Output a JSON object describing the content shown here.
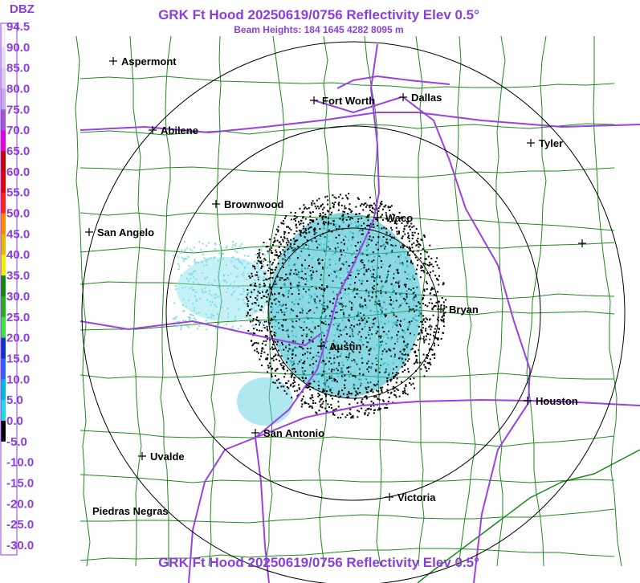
{
  "header": {
    "title": "GRK Ft Hood 20250619/0756 Reflectivity Elev 0.5°",
    "subtitle": "Beam Heights: 184 1645 4282 8095 m"
  },
  "legend": {
    "unit": "DBZ",
    "labels": [
      "94.5",
      "90.0",
      "85.0",
      "80.0",
      "75.0",
      "70.0",
      "65.0",
      "60.0",
      "55.0",
      "50.0",
      "45.0",
      "40.0",
      "35.0",
      "30.0",
      "25.0",
      "20.0",
      "15.0",
      "10.0",
      "5.0",
      "0.0",
      "-5.0",
      "-10.0",
      "-15.0",
      "-20.0",
      "-25.0",
      "-30.0"
    ]
  },
  "cities": [
    {
      "name": "Aspermont"
    },
    {
      "name": "Fort Worth"
    },
    {
      "name": "Dallas"
    },
    {
      "name": "Abilene"
    },
    {
      "name": "Tyler"
    },
    {
      "name": "Brownwood"
    },
    {
      "name": "Waco"
    },
    {
      "name": "San Angelo"
    },
    {
      "name": "Bryan"
    },
    {
      "name": "Austin"
    },
    {
      "name": "Houston"
    },
    {
      "name": "San Antonio"
    },
    {
      "name": "Uvalde"
    },
    {
      "name": "Victoria"
    },
    {
      "name": "Piedras Negras"
    }
  ],
  "footer": {
    "title": "GRK Ft Hood 20250619/0756 Reflectivity Elev 0.5°"
  }
}
